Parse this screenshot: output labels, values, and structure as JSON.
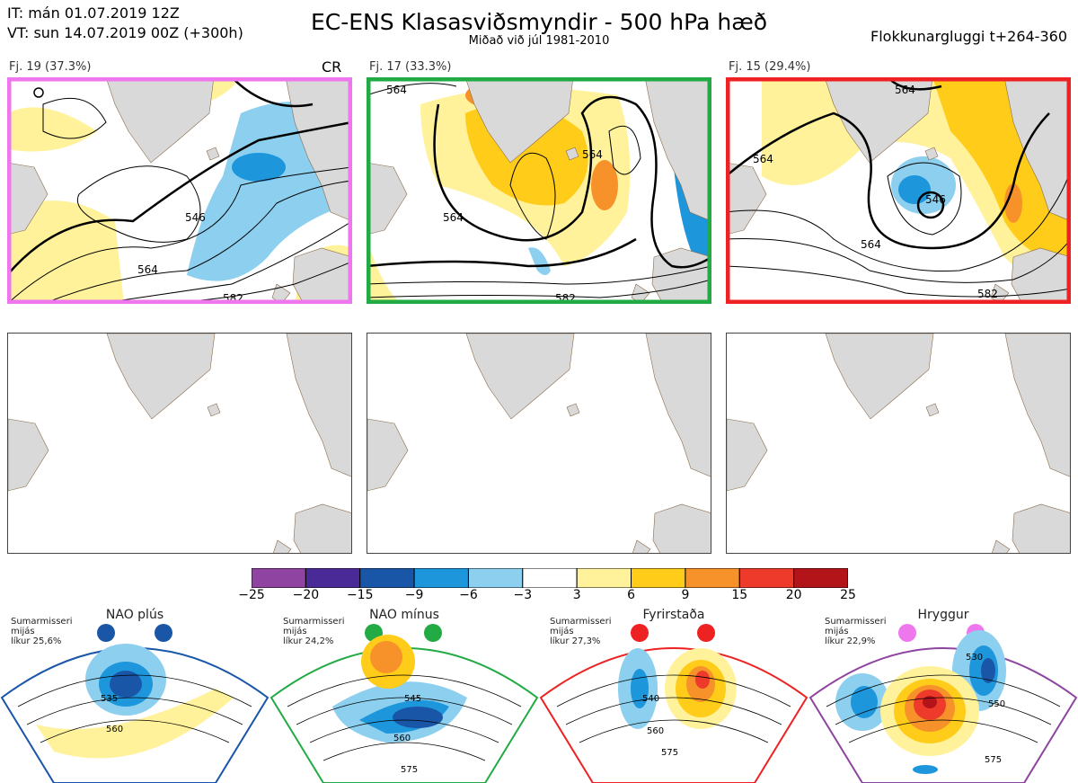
{
  "header": {
    "line1": "IT: mán 01.07.2019 12Z",
    "line2": "VT: sun 14.07.2019 00Z  (+300h)",
    "title": "EC-ENS Klasasviðsmyndir - 500 hPa hæð",
    "subtitle": "Miðað við júl 1981-2010",
    "window": "Flokkunargluggi t+264-360"
  },
  "clusters": [
    {
      "label": "Fj. 19 (37.3%)",
      "frame_color": "#ee77ee",
      "contours": [
        "546",
        "564",
        "582"
      ],
      "badge": "CR"
    },
    {
      "label": "Fj. 17 (33.3%)",
      "frame_color": "#22aa44",
      "contours": [
        "564",
        "564",
        "564",
        "582"
      ]
    },
    {
      "label": "Fj. 15 (29.4%)",
      "frame_color": "#ee2222",
      "contours": [
        "564",
        "546",
        "564",
        "564",
        "582"
      ]
    }
  ],
  "colorbar": {
    "colors": [
      "#8e44a0",
      "#4a2a96",
      "#1a56a8",
      "#1e96dc",
      "#8ccfee",
      "#ffffff",
      "#fff29a",
      "#ffcc1a",
      "#f7922a",
      "#ee3a2a",
      "#b3141a"
    ],
    "ticks": [
      "−25",
      "−20",
      "−15",
      "−9",
      "−6",
      "−3",
      "3",
      "6",
      "9",
      "15",
      "20",
      "25"
    ]
  },
  "regimes": [
    {
      "title": "NAO plús",
      "season": "Sumarmisseri",
      "kind": "mijás",
      "prob": "líkur 25,6%",
      "color": "#1a56a8",
      "contours": [
        "535",
        "560"
      ]
    },
    {
      "title": "NAO mínus",
      "season": "Sumarmisseri",
      "kind": "mijás",
      "prob": "líkur 24,2%",
      "color": "#22aa44",
      "contours": [
        "545",
        "560",
        "575"
      ]
    },
    {
      "title": "Fyrirstaða",
      "season": "Sumarmisseri",
      "kind": "mijás",
      "prob": "líkur 27,3%",
      "color": "#ee2222",
      "contours": [
        "540",
        "560",
        "575"
      ]
    },
    {
      "title": "Hryggur",
      "season": "Sumarmisseri",
      "kind": "mijás",
      "prob": "líkur 22,9%",
      "color": "#ee77ee",
      "contours": [
        "530",
        "550",
        "575"
      ]
    }
  ]
}
